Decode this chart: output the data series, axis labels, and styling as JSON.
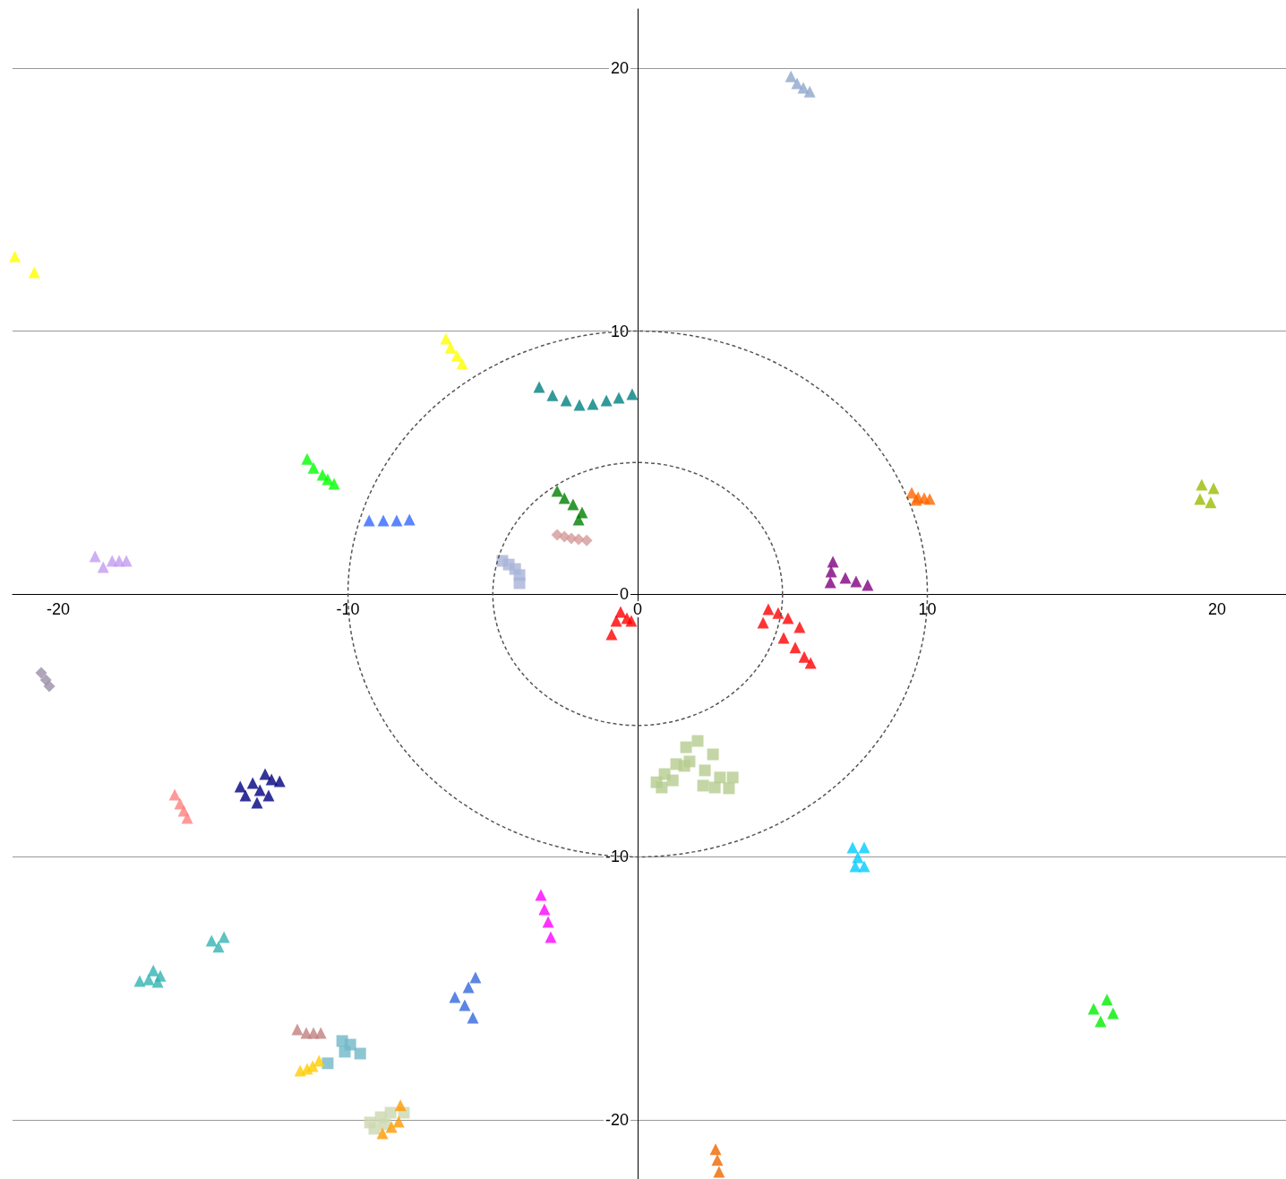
{
  "chart_data": {
    "type": "scatter",
    "xlim": [
      -21.58,
      22.38
    ],
    "ylim": [
      -22.25,
      22.25
    ],
    "xticks": [
      -20,
      -10,
      0,
      10,
      20
    ],
    "yticks": [
      -20,
      -10,
      0,
      10,
      20
    ],
    "grid": "y",
    "marker": "triangle",
    "series": [
      {
        "color": "#8fa6cc",
        "x": [
          5.29,
          5.5,
          5.72,
          5.94
        ],
        "values": [
          19.69,
          19.42,
          19.25,
          19.11
        ]
      },
      {
        "color": "#ffff00",
        "x": [
          -21.5,
          -20.83
        ],
        "values": [
          12.84,
          12.23
        ]
      },
      {
        "color": "#ffff00",
        "x": [
          -6.62,
          -6.46,
          -6.24,
          -6.06
        ],
        "values": [
          9.71,
          9.37,
          9.06,
          8.76
        ]
      },
      {
        "color": "#008080",
        "x": [
          -3.4,
          -2.94,
          -2.47,
          -2.01,
          -1.55,
          -1.08,
          -0.65,
          -0.19
        ],
        "values": [
          7.87,
          7.56,
          7.36,
          7.19,
          7.22,
          7.36,
          7.46,
          7.6
        ]
      },
      {
        "color": "#00ff00",
        "x": [
          -11.41,
          -11.19,
          -10.88,
          -10.7,
          -10.48
        ],
        "values": [
          5.14,
          4.8,
          4.53,
          4.36,
          4.19
        ]
      },
      {
        "color": "#3366ff",
        "x": [
          -9.27,
          -8.78,
          -8.32,
          -7.88
        ],
        "values": [
          2.79,
          2.79,
          2.79,
          2.83
        ]
      },
      {
        "color": "#c39bf0",
        "x": [
          -18.73,
          -18.45,
          -18.14,
          -17.9,
          -17.65
        ],
        "values": [
          1.43,
          1.02,
          1.26,
          1.26,
          1.26
        ]
      },
      {
        "color": "#008000",
        "x": [
          -2.78,
          -2.53,
          -2.23,
          -1.92,
          -2.04
        ],
        "values": [
          3.92,
          3.65,
          3.41,
          3.1,
          2.83
        ]
      },
      {
        "color": "#d49a9a",
        "marker": "diamond",
        "x": [
          -2.78,
          -2.53,
          -2.29,
          -2.04,
          -1.76
        ],
        "values": [
          2.25,
          2.18,
          2.11,
          2.08,
          2.04
        ]
      },
      {
        "color": "#a8b4d8",
        "marker": "square",
        "x": [
          -4.67,
          -4.45,
          -4.23,
          -4.08,
          -4.08
        ],
        "values": [
          1.26,
          1.12,
          0.95,
          0.72,
          0.41
        ]
      },
      {
        "color": "#ff6600",
        "x": [
          9.46,
          9.68,
          9.89,
          10.08,
          9.61
        ],
        "values": [
          3.85,
          3.68,
          3.65,
          3.61,
          3.58
        ]
      },
      {
        "color": "#99bb00",
        "x": [
          19.47,
          19.88,
          19.41,
          19.78
        ],
        "values": [
          4.16,
          4.02,
          3.61,
          3.48
        ]
      },
      {
        "color": "#800080",
        "x": [
          6.74,
          6.68,
          6.65,
          7.17,
          7.54,
          7.94
        ],
        "values": [
          1.23,
          0.85,
          0.44,
          0.61,
          0.48,
          0.34
        ]
      },
      {
        "color": "#ff0000",
        "x": [
          -0.59,
          -0.74,
          -0.9,
          -0.37,
          -0.22
        ],
        "values": [
          -0.68,
          -1.02,
          -1.53,
          -0.92,
          -1.02
        ]
      },
      {
        "color": "#ff0000",
        "x": [
          4.51,
          4.85,
          5.19,
          5.59,
          4.33,
          5.04,
          5.44,
          5.75,
          5.97
        ],
        "values": [
          -0.58,
          -0.72,
          -0.92,
          -1.26,
          -1.09,
          -1.67,
          -2.04,
          -2.39,
          -2.62
        ]
      },
      {
        "color": "#b5cc8e",
        "marker": "square",
        "x": [
          2.07,
          1.67,
          2.6,
          1.33,
          1.61,
          2.32,
          0.93,
          1.21,
          2.84,
          3.28,
          2.26,
          2.66,
          0.65,
          0.83,
          3.15,
          1.79
        ],
        "values": [
          -5.59,
          -5.83,
          -6.1,
          -6.47,
          -6.54,
          -6.71,
          -6.85,
          -7.09,
          -6.98,
          -6.98,
          -7.29,
          -7.36,
          -7.16,
          -7.36,
          -7.39,
          -6.37
        ]
      },
      {
        "color": "#9a8fa8",
        "marker": "diamond",
        "x": [
          -20.59,
          -20.43,
          -20.31
        ],
        "values": [
          -3.0,
          -3.27,
          -3.51
        ]
      },
      {
        "color": "#ff7f7f",
        "x": [
          -15.98,
          -15.8,
          -15.67,
          -15.55
        ],
        "values": [
          -7.63,
          -7.97,
          -8.25,
          -8.52
        ]
      },
      {
        "color": "#000080",
        "x": [
          -12.86,
          -12.36,
          -13.72,
          -13.29,
          -13.04,
          -12.74,
          -13.54,
          -13.14,
          -12.64
        ],
        "values": [
          -6.85,
          -7.12,
          -7.33,
          -7.19,
          -7.46,
          -7.67,
          -7.67,
          -7.94,
          -7.05
        ]
      },
      {
        "color": "#00ccff",
        "x": [
          7.42,
          7.82,
          7.6,
          7.51,
          7.82
        ],
        "values": [
          -9.64,
          -9.64,
          -10.02,
          -10.36,
          -10.36
        ]
      },
      {
        "color": "#ff00ff",
        "x": [
          -3.34,
          -3.22,
          -3.09,
          -3.0
        ],
        "values": [
          -11.45,
          -11.99,
          -12.47,
          -13.05
        ]
      },
      {
        "color": "#33b3b3",
        "x": [
          -14.71,
          -14.28,
          -14.47,
          -16.72,
          -16.88,
          -16.48,
          -17.19,
          -16.57
        ],
        "values": [
          -13.19,
          -13.05,
          -13.42,
          -14.32,
          -14.66,
          -14.52,
          -14.72,
          -14.75
        ]
      },
      {
        "color": "#3366dd",
        "x": [
          -5.6,
          -5.84,
          -6.31,
          -5.97,
          -5.69
        ],
        "values": [
          -14.58,
          -14.96,
          -15.33,
          -15.64,
          -16.12
        ]
      },
      {
        "color": "#c08080",
        "x": [
          -11.75,
          -11.44,
          -11.19,
          -10.94
        ],
        "values": [
          -16.56,
          -16.7,
          -16.7,
          -16.7
        ]
      },
      {
        "color": "#70b8c8",
        "marker": "square",
        "x": [
          -10.2,
          -9.92,
          -10.11,
          -9.58,
          -10.7
        ],
        "values": [
          -17.0,
          -17.14,
          -17.41,
          -17.48,
          -17.85
        ]
      },
      {
        "color": "#ffcc00",
        "x": [
          -11.65,
          -11.41,
          -11.22,
          -11.0
        ],
        "values": [
          -18.13,
          -18.06,
          -17.96,
          -17.75
        ]
      },
      {
        "color": "#ccd8b0",
        "marker": "square",
        "x": [
          -9.24,
          -8.87,
          -8.53,
          -8.07,
          -9.09,
          -8.72
        ],
        "values": [
          -20.1,
          -19.9,
          -19.73,
          -19.73,
          -20.34,
          -20.17
        ]
      },
      {
        "color": "#ff9900",
        "x": [
          -8.19,
          -8.25,
          -8.5,
          -8.81
        ],
        "values": [
          -19.45,
          -20.07,
          -20.27,
          -20.51
        ]
      },
      {
        "color": "#00ee00",
        "x": [
          16.2,
          15.74,
          16.41,
          15.98
        ],
        "values": [
          -15.43,
          -15.78,
          -15.95,
          -16.25
        ]
      },
      {
        "color": "#ee6600",
        "x": [
          2.69,
          2.75,
          2.81
        ],
        "values": [
          -21.12,
          -21.53,
          -21.98
        ]
      }
    ]
  }
}
